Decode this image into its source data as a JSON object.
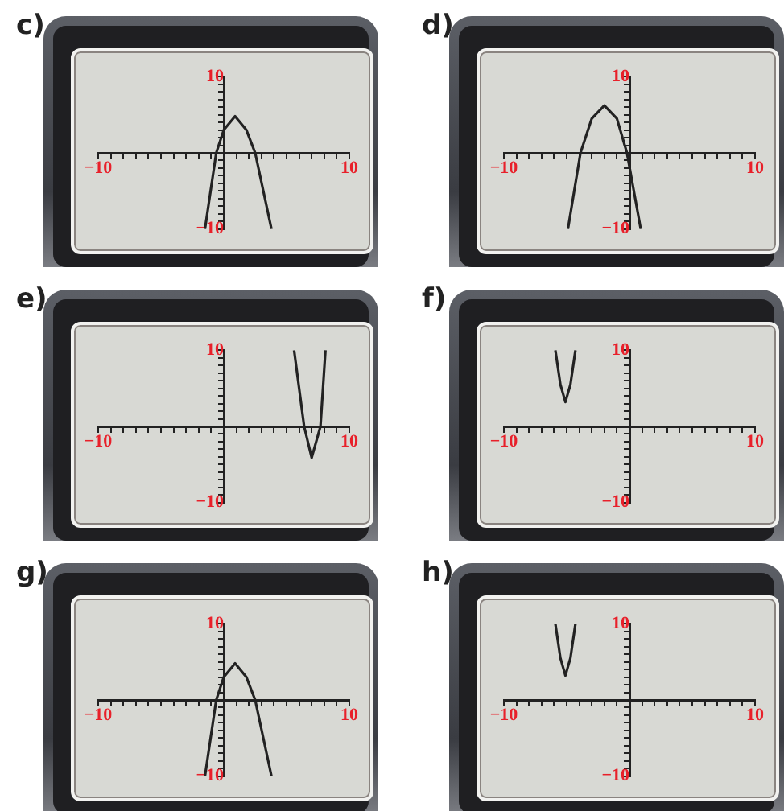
{
  "chart_data": [
    {
      "type": "line",
      "title": "c)",
      "x": [
        -1.5,
        -0.6,
        0,
        0.9,
        1.8,
        2.5,
        3.8
      ],
      "values": [
        -10,
        0,
        3,
        4.8,
        3,
        0,
        -10
      ],
      "color": "#222222",
      "marker": "none",
      "grid": false,
      "xlim": [
        -10,
        10
      ],
      "ylim": [
        -10,
        10
      ],
      "xticks": [
        {
          "value": -10,
          "label": "−10"
        },
        {
          "value": -9,
          "label": null
        },
        {
          "value": -8,
          "label": null
        },
        {
          "value": -7,
          "label": null
        },
        {
          "value": -6,
          "label": null
        },
        {
          "value": -5,
          "label": null
        },
        {
          "value": -4,
          "label": null
        },
        {
          "value": -3,
          "label": null
        },
        {
          "value": -2,
          "label": null
        },
        {
          "value": -1,
          "label": null
        },
        {
          "value": 1,
          "label": null
        },
        {
          "value": 2,
          "label": null
        },
        {
          "value": 3,
          "label": null
        },
        {
          "value": 4,
          "label": null
        },
        {
          "value": 5,
          "label": null
        },
        {
          "value": 6,
          "label": null
        },
        {
          "value": 7,
          "label": null
        },
        {
          "value": 8,
          "label": null
        },
        {
          "value": 9,
          "label": null
        },
        {
          "value": 10,
          "label": "10"
        }
      ],
      "yticks": [
        {
          "value": -10,
          "label": "−10"
        },
        {
          "value": -9,
          "label": null
        },
        {
          "value": -8,
          "label": null
        },
        {
          "value": -7,
          "label": null
        },
        {
          "value": -6,
          "label": null
        },
        {
          "value": -5,
          "label": null
        },
        {
          "value": -4,
          "label": null
        },
        {
          "value": -3,
          "label": null
        },
        {
          "value": -2,
          "label": null
        },
        {
          "value": -1,
          "label": null
        },
        {
          "value": 1,
          "label": null
        },
        {
          "value": 2,
          "label": null
        },
        {
          "value": 3,
          "label": null
        },
        {
          "value": 4,
          "label": null
        },
        {
          "value": 5,
          "label": null
        },
        {
          "value": 6,
          "label": null
        },
        {
          "value": 7,
          "label": null
        },
        {
          "value": 8,
          "label": null
        },
        {
          "value": 9,
          "label": null
        },
        {
          "value": 10,
          "label": "10"
        }
      ]
    },
    {
      "type": "line",
      "title": "d)",
      "x": [
        -4.9,
        -3.9,
        -3,
        -2,
        -1,
        -0.2,
        0.9
      ],
      "values": [
        -10,
        0,
        4.5,
        6.2,
        4.5,
        0,
        -10
      ],
      "color": "#222222",
      "marker": "none",
      "grid": false,
      "xlim": [
        -10,
        10
      ],
      "ylim": [
        -10,
        10
      ],
      "xticks": [
        {
          "value": -10,
          "label": "−10"
        },
        {
          "value": -9,
          "label": null
        },
        {
          "value": -8,
          "label": null
        },
        {
          "value": -7,
          "label": null
        },
        {
          "value": -6,
          "label": null
        },
        {
          "value": -5,
          "label": null
        },
        {
          "value": -4,
          "label": null
        },
        {
          "value": -3,
          "label": null
        },
        {
          "value": -2,
          "label": null
        },
        {
          "value": -1,
          "label": null
        },
        {
          "value": 1,
          "label": null
        },
        {
          "value": 2,
          "label": null
        },
        {
          "value": 3,
          "label": null
        },
        {
          "value": 4,
          "label": null
        },
        {
          "value": 5,
          "label": null
        },
        {
          "value": 6,
          "label": null
        },
        {
          "value": 7,
          "label": null
        },
        {
          "value": 8,
          "label": null
        },
        {
          "value": 9,
          "label": null
        },
        {
          "value": 10,
          "label": "10"
        }
      ],
      "yticks": [
        {
          "value": -10,
          "label": "−10"
        },
        {
          "value": -9,
          "label": null
        },
        {
          "value": -8,
          "label": null
        },
        {
          "value": -7,
          "label": null
        },
        {
          "value": -6,
          "label": null
        },
        {
          "value": -5,
          "label": null
        },
        {
          "value": -4,
          "label": null
        },
        {
          "value": -3,
          "label": null
        },
        {
          "value": -2,
          "label": null
        },
        {
          "value": -1,
          "label": null
        },
        {
          "value": 1,
          "label": null
        },
        {
          "value": 2,
          "label": null
        },
        {
          "value": 3,
          "label": null
        },
        {
          "value": 4,
          "label": null
        },
        {
          "value": 5,
          "label": null
        },
        {
          "value": 6,
          "label": null
        },
        {
          "value": 7,
          "label": null
        },
        {
          "value": 8,
          "label": null
        },
        {
          "value": 9,
          "label": null
        },
        {
          "value": 10,
          "label": "10"
        }
      ]
    },
    {
      "type": "line",
      "title": "e)",
      "x": [
        5.6,
        6.4,
        7,
        7.7,
        8.1
      ],
      "values": [
        10,
        0,
        -4.1,
        0,
        10
      ],
      "color": "#222222",
      "marker": "none",
      "grid": false,
      "xlim": [
        -10,
        10
      ],
      "ylim": [
        -10,
        10
      ],
      "xticks": [
        {
          "value": -10,
          "label": "−10"
        },
        {
          "value": -9,
          "label": null
        },
        {
          "value": -8,
          "label": null
        },
        {
          "value": -7,
          "label": null
        },
        {
          "value": -6,
          "label": null
        },
        {
          "value": -5,
          "label": null
        },
        {
          "value": -4,
          "label": null
        },
        {
          "value": -3,
          "label": null
        },
        {
          "value": -2,
          "label": null
        },
        {
          "value": -1,
          "label": null
        },
        {
          "value": 1,
          "label": null
        },
        {
          "value": 2,
          "label": null
        },
        {
          "value": 3,
          "label": null
        },
        {
          "value": 4,
          "label": null
        },
        {
          "value": 5,
          "label": null
        },
        {
          "value": 6,
          "label": null
        },
        {
          "value": 7,
          "label": null
        },
        {
          "value": 8,
          "label": null
        },
        {
          "value": 9,
          "label": null
        },
        {
          "value": 10,
          "label": "10"
        }
      ],
      "yticks": [
        {
          "value": -10,
          "label": "−10"
        },
        {
          "value": -9,
          "label": null
        },
        {
          "value": -8,
          "label": null
        },
        {
          "value": -7,
          "label": null
        },
        {
          "value": -6,
          "label": null
        },
        {
          "value": -5,
          "label": null
        },
        {
          "value": -4,
          "label": null
        },
        {
          "value": -3,
          "label": null
        },
        {
          "value": -2,
          "label": null
        },
        {
          "value": -1,
          "label": null
        },
        {
          "value": 1,
          "label": null
        },
        {
          "value": 2,
          "label": null
        },
        {
          "value": 3,
          "label": null
        },
        {
          "value": 4,
          "label": null
        },
        {
          "value": 5,
          "label": null
        },
        {
          "value": 6,
          "label": null
        },
        {
          "value": 7,
          "label": null
        },
        {
          "value": 8,
          "label": null
        },
        {
          "value": 9,
          "label": null
        },
        {
          "value": 10,
          "label": "10"
        }
      ]
    },
    {
      "type": "line",
      "title": "f)",
      "x": [
        -5.9,
        -5.5,
        -5.1,
        -4.7,
        -4.3
      ],
      "values": [
        10,
        5.5,
        3.2,
        5.5,
        10
      ],
      "color": "#222222",
      "marker": "none",
      "grid": false,
      "xlim": [
        -10,
        10
      ],
      "ylim": [
        -10,
        10
      ],
      "xticks": [
        {
          "value": -10,
          "label": "−10"
        },
        {
          "value": -9,
          "label": null
        },
        {
          "value": -8,
          "label": null
        },
        {
          "value": -7,
          "label": null
        },
        {
          "value": -6,
          "label": null
        },
        {
          "value": -5,
          "label": null
        },
        {
          "value": -4,
          "label": null
        },
        {
          "value": -3,
          "label": null
        },
        {
          "value": -2,
          "label": null
        },
        {
          "value": -1,
          "label": null
        },
        {
          "value": 1,
          "label": null
        },
        {
          "value": 2,
          "label": null
        },
        {
          "value": 3,
          "label": null
        },
        {
          "value": 4,
          "label": null
        },
        {
          "value": 5,
          "label": null
        },
        {
          "value": 6,
          "label": null
        },
        {
          "value": 7,
          "label": null
        },
        {
          "value": 8,
          "label": null
        },
        {
          "value": 9,
          "label": null
        },
        {
          "value": 10,
          "label": "10"
        }
      ],
      "yticks": [
        {
          "value": -10,
          "label": "−10"
        },
        {
          "value": -9,
          "label": null
        },
        {
          "value": -8,
          "label": null
        },
        {
          "value": -7,
          "label": null
        },
        {
          "value": -6,
          "label": null
        },
        {
          "value": -5,
          "label": null
        },
        {
          "value": -4,
          "label": null
        },
        {
          "value": -3,
          "label": null
        },
        {
          "value": -2,
          "label": null
        },
        {
          "value": -1,
          "label": null
        },
        {
          "value": 1,
          "label": null
        },
        {
          "value": 2,
          "label": null
        },
        {
          "value": 3,
          "label": null
        },
        {
          "value": 4,
          "label": null
        },
        {
          "value": 5,
          "label": null
        },
        {
          "value": 6,
          "label": null
        },
        {
          "value": 7,
          "label": null
        },
        {
          "value": 8,
          "label": null
        },
        {
          "value": 9,
          "label": null
        },
        {
          "value": 10,
          "label": "10"
        }
      ]
    },
    {
      "type": "line",
      "title": "g)",
      "x": [
        -1.5,
        -0.6,
        0,
        0.9,
        1.8,
        2.5,
        3.8
      ],
      "values": [
        -10,
        0,
        3,
        4.8,
        3,
        0,
        -10
      ],
      "color": "#222222",
      "marker": "none",
      "grid": false,
      "xlim": [
        -10,
        10
      ],
      "ylim": [
        -10,
        10
      ],
      "xticks": [
        {
          "value": -10,
          "label": "−10"
        },
        {
          "value": -9,
          "label": null
        },
        {
          "value": -8,
          "label": null
        },
        {
          "value": -7,
          "label": null
        },
        {
          "value": -6,
          "label": null
        },
        {
          "value": -5,
          "label": null
        },
        {
          "value": -4,
          "label": null
        },
        {
          "value": -3,
          "label": null
        },
        {
          "value": -2,
          "label": null
        },
        {
          "value": -1,
          "label": null
        },
        {
          "value": 1,
          "label": null
        },
        {
          "value": 2,
          "label": null
        },
        {
          "value": 3,
          "label": null
        },
        {
          "value": 4,
          "label": null
        },
        {
          "value": 5,
          "label": null
        },
        {
          "value": 6,
          "label": null
        },
        {
          "value": 7,
          "label": null
        },
        {
          "value": 8,
          "label": null
        },
        {
          "value": 9,
          "label": null
        },
        {
          "value": 10,
          "label": "10"
        }
      ],
      "yticks": [
        {
          "value": -10,
          "label": "−10"
        },
        {
          "value": -9,
          "label": null
        },
        {
          "value": -8,
          "label": null
        },
        {
          "value": -7,
          "label": null
        },
        {
          "value": -6,
          "label": null
        },
        {
          "value": -5,
          "label": null
        },
        {
          "value": -4,
          "label": null
        },
        {
          "value": -3,
          "label": null
        },
        {
          "value": -2,
          "label": null
        },
        {
          "value": -1,
          "label": null
        },
        {
          "value": 1,
          "label": null
        },
        {
          "value": 2,
          "label": null
        },
        {
          "value": 3,
          "label": null
        },
        {
          "value": 4,
          "label": null
        },
        {
          "value": 5,
          "label": null
        },
        {
          "value": 6,
          "label": null
        },
        {
          "value": 7,
          "label": null
        },
        {
          "value": 8,
          "label": null
        },
        {
          "value": 9,
          "label": null
        },
        {
          "value": 10,
          "label": "10"
        }
      ]
    },
    {
      "type": "line",
      "title": "h)",
      "x": [
        -5.9,
        -5.5,
        -5.1,
        -4.7,
        -4.3
      ],
      "values": [
        10,
        5.5,
        3.2,
        5.5,
        10
      ],
      "color": "#222222",
      "marker": "none",
      "grid": false,
      "xlim": [
        -10,
        10
      ],
      "ylim": [
        -10,
        10
      ],
      "xticks": [
        {
          "value": -10,
          "label": "−10"
        },
        {
          "value": -9,
          "label": null
        },
        {
          "value": -8,
          "label": null
        },
        {
          "value": -7,
          "label": null
        },
        {
          "value": -6,
          "label": null
        },
        {
          "value": -5,
          "label": null
        },
        {
          "value": -4,
          "label": null
        },
        {
          "value": -3,
          "label": null
        },
        {
          "value": -2,
          "label": null
        },
        {
          "value": -1,
          "label": null
        },
        {
          "value": 1,
          "label": null
        },
        {
          "value": 2,
          "label": null
        },
        {
          "value": 3,
          "label": null
        },
        {
          "value": 4,
          "label": null
        },
        {
          "value": 5,
          "label": null
        },
        {
          "value": 6,
          "label": null
        },
        {
          "value": 7,
          "label": null
        },
        {
          "value": 8,
          "label": null
        },
        {
          "value": 9,
          "label": null
        },
        {
          "value": 10,
          "label": "10"
        }
      ],
      "yticks": [
        {
          "value": -10,
          "label": "−10"
        },
        {
          "value": -9,
          "label": null
        },
        {
          "value": -8,
          "label": null
        },
        {
          "value": -7,
          "label": null
        },
        {
          "value": -6,
          "label": null
        },
        {
          "value": -5,
          "label": null
        },
        {
          "value": -4,
          "label": null
        },
        {
          "value": -3,
          "label": null
        },
        {
          "value": -2,
          "label": null
        },
        {
          "value": -1,
          "label": null
        },
        {
          "value": 1,
          "label": null
        },
        {
          "value": 2,
          "label": null
        },
        {
          "value": 3,
          "label": null
        },
        {
          "value": 4,
          "label": null
        },
        {
          "value": 5,
          "label": null
        },
        {
          "value": 6,
          "label": null
        },
        {
          "value": 7,
          "label": null
        },
        {
          "value": 8,
          "label": null
        },
        {
          "value": 9,
          "label": null
        },
        {
          "value": 10,
          "label": "10"
        }
      ]
    }
  ]
}
